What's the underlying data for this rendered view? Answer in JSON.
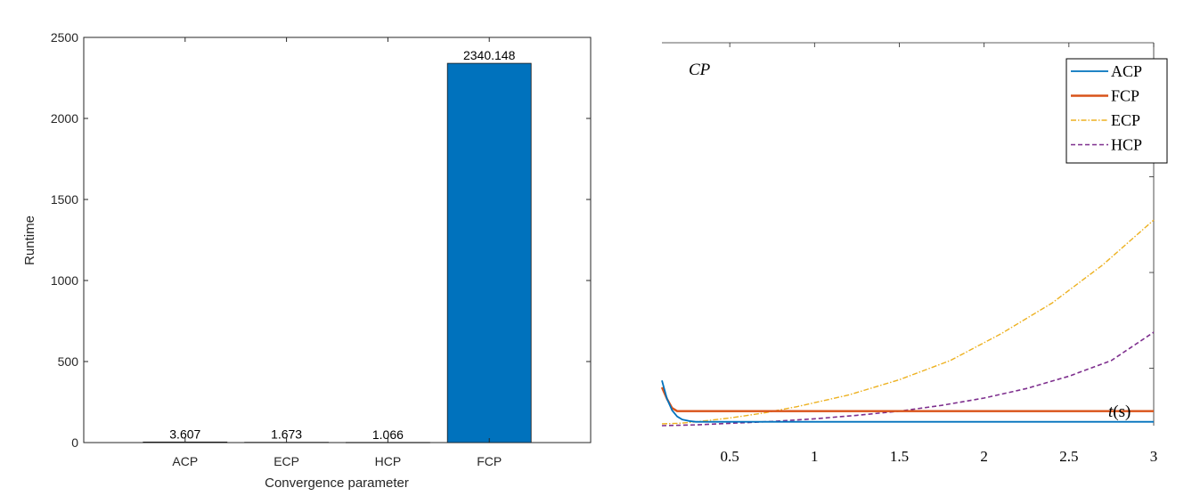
{
  "chart_data": [
    {
      "type": "bar",
      "categories": [
        "ACP",
        "ECP",
        "HCP",
        "FCP"
      ],
      "values": [
        3.607,
        1.673,
        1.066,
        2340.148
      ],
      "value_labels": [
        "3.607",
        "1.673",
        "1.066",
        "2340.148"
      ],
      "xlabel": "Convergence parameter",
      "ylabel": "Runtime",
      "ylim": [
        0,
        2500
      ],
      "yticks": [
        0,
        500,
        1000,
        1500,
        2000,
        2500
      ],
      "ytick_labels": [
        "0",
        "500",
        "1000",
        "1500",
        "2000",
        "2500"
      ],
      "bar_color": "#0072BD",
      "grid": false
    },
    {
      "type": "line",
      "annotation": "CP",
      "xlabel": "t(s)",
      "xlim": [
        0.1,
        3
      ],
      "xticks": [
        0.5,
        1,
        1.5,
        2,
        2.5,
        3
      ],
      "xtick_labels": [
        "0.5",
        "1",
        "1.5",
        "2",
        "2.5",
        "3"
      ],
      "ylim": [
        0,
        1
      ],
      "legend_position": "top-right",
      "grid": false,
      "series": [
        {
          "name": "ACP",
          "color": "#0072BD",
          "style": "solid",
          "x": [
            0.1,
            0.13,
            0.16,
            0.19,
            0.22,
            0.26,
            0.3,
            3
          ],
          "y": [
            0.118,
            0.07,
            0.04,
            0.024,
            0.016,
            0.012,
            0.01,
            0.01
          ]
        },
        {
          "name": "FCP",
          "color": "#D95319",
          "style": "solid",
          "x": [
            0.1,
            0.13,
            0.16,
            0.19,
            3
          ],
          "y": [
            0.1,
            0.07,
            0.046,
            0.038,
            0.038
          ]
        },
        {
          "name": "ECP",
          "color": "#EDB120",
          "style": "dashdot",
          "x": [
            0.1,
            0.2,
            0.3,
            0.4,
            0.5,
            0.7,
            0.9,
            1.2,
            1.5,
            1.8,
            2.1,
            2.4,
            2.7,
            3
          ],
          "y": [
            0.005,
            0.006,
            0.01,
            0.015,
            0.02,
            0.033,
            0.05,
            0.08,
            0.12,
            0.17,
            0.24,
            0.32,
            0.42,
            0.537
          ]
        },
        {
          "name": "HCP",
          "color": "#7E2F8E",
          "style": "dashed",
          "x": [
            0.1,
            0.3,
            0.5,
            0.75,
            1,
            1.25,
            1.5,
            1.75,
            2,
            2.25,
            2.5,
            2.75,
            3
          ],
          "y": [
            0.0,
            0.002,
            0.006,
            0.011,
            0.018,
            0.027,
            0.038,
            0.053,
            0.072,
            0.097,
            0.129,
            0.17,
            0.244
          ]
        }
      ]
    }
  ]
}
